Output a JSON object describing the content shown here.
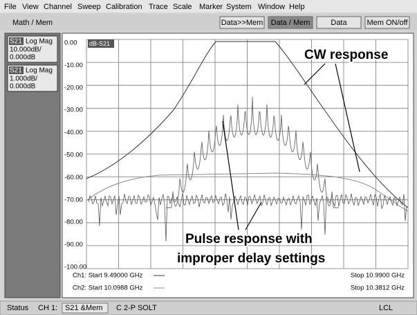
{
  "menu": [
    "File",
    "View",
    "Channel",
    "Sweep",
    "Calibration",
    "Trace",
    "Scale",
    "Marker",
    "System",
    "Window",
    "Help"
  ],
  "toolbar": {
    "label": "Math / Mem",
    "buttons": [
      "Data>>Mem",
      "Data / Mem",
      "Data",
      "Mem ON/off"
    ]
  },
  "channels": [
    {
      "param": "S21",
      "format": "Log Mag",
      "scale": "10.000dB/",
      "ref": "0.000dB"
    },
    {
      "param": "S21",
      "format": "Log Mag",
      "scale": "1.000dB/",
      "ref": "0.000dB"
    }
  ],
  "plot": {
    "trace_label": "dB-S21",
    "y_labels": [
      "0.00",
      "-10.00",
      "-20.00",
      "-30.00",
      "-40.00",
      "-50.00",
      "-60.00",
      "-70.00",
      "-80.00",
      "-90.00",
      "-100.00"
    ],
    "footer": [
      {
        "start": "Ch1: Start  9.49000 GHz",
        "stop": "Stop  10.9900 GHz"
      },
      {
        "start": "Ch2: Start  10.0988 GHz",
        "stop": "Stop  10.3812 GHz"
      }
    ],
    "annotations": [
      "CW response",
      "Pulse response with",
      "improper delay settings"
    ]
  },
  "status": {
    "label": "Status",
    "channel": "CH 1:",
    "trace": "S21 &Mem",
    "cal": "C  2-P SOLT",
    "mode": "LCL"
  }
}
